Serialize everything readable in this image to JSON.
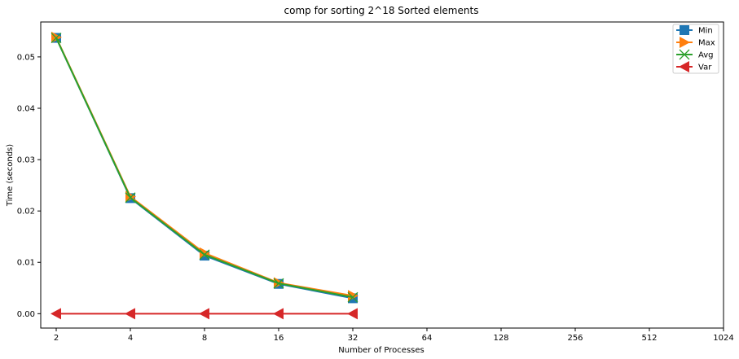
{
  "chart_data": {
    "type": "line",
    "title": "comp for sorting 2^18 Sorted elements",
    "xlabel": "Number of Processes",
    "ylabel": "Time (seconds)",
    "x_scale": "log2",
    "categories": [
      "2",
      "4",
      "8",
      "16",
      "32",
      "64",
      "128",
      "256",
      "512",
      "1024"
    ],
    "x": [
      2,
      4,
      8,
      16,
      32
    ],
    "yticks": [
      "0.00",
      "0.01",
      "0.02",
      "0.03",
      "0.04",
      "0.05"
    ],
    "ylim": [
      -0.0028,
      0.0568
    ],
    "grid": false,
    "legend_position": "top-right",
    "series": [
      {
        "name": "Min",
        "color": "#1f77b4",
        "marker": "square",
        "values": [
          0.0537,
          0.0225,
          0.0113,
          0.0058,
          0.003
        ]
      },
      {
        "name": "Max",
        "color": "#ff7f0e",
        "marker": "triangle-right",
        "values": [
          0.0538,
          0.0228,
          0.0118,
          0.006,
          0.0035
        ]
      },
      {
        "name": "Avg",
        "color": "#2ca02c",
        "marker": "x",
        "values": [
          0.0537,
          0.0226,
          0.0115,
          0.0059,
          0.0032
        ]
      },
      {
        "name": "Var",
        "color": "#d62728",
        "marker": "triangle-left",
        "values": [
          0.0,
          0.0,
          0.0,
          0.0,
          0.0
        ]
      }
    ]
  }
}
